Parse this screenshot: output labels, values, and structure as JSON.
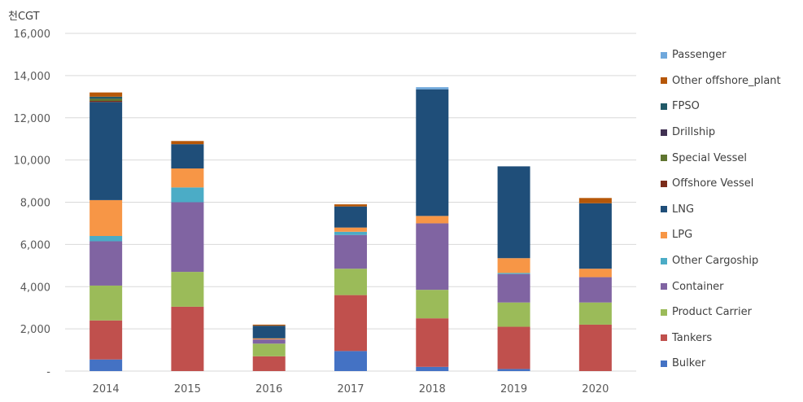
{
  "chart_data": {
    "type": "bar",
    "stacked": true,
    "unit_label": "천CGT",
    "categories": [
      "2014",
      "2015",
      "2016",
      "2017",
      "2018",
      "2019",
      "2020"
    ],
    "ylim": [
      0,
      16000
    ],
    "yticks": [
      0,
      2000,
      4000,
      6000,
      8000,
      10000,
      12000,
      14000,
      16000
    ],
    "ytick_labels": [
      "-",
      "2,000",
      "4,000",
      "6,000",
      "8,000",
      "10,000",
      "12,000",
      "14,000",
      "16,000"
    ],
    "grid": true,
    "legend_position": "right",
    "series": [
      {
        "name": "Bulker",
        "color": "#4472c4",
        "values": [
          550,
          0,
          0,
          950,
          200,
          100,
          0
        ]
      },
      {
        "name": "Tankers",
        "color": "#c0504d",
        "values": [
          1850,
          3050,
          700,
          2650,
          2300,
          2000,
          2200
        ]
      },
      {
        "name": "Product Carrier",
        "color": "#9bbb59",
        "values": [
          1650,
          1650,
          600,
          1250,
          1350,
          1150,
          1050
        ]
      },
      {
        "name": "Container",
        "color": "#8064a2",
        "values": [
          2100,
          3300,
          200,
          1600,
          3150,
          1350,
          1200
        ]
      },
      {
        "name": "Other Cargoship",
        "color": "#4bacc6",
        "values": [
          250,
          700,
          0,
          150,
          0,
          50,
          0
        ]
      },
      {
        "name": "LPG",
        "color": "#f79646",
        "values": [
          1700,
          900,
          50,
          200,
          350,
          700,
          400
        ]
      },
      {
        "name": "LNG",
        "color": "#1f4e79",
        "values": [
          4650,
          1150,
          600,
          1000,
          6000,
          4350,
          3100
        ]
      },
      {
        "name": "Offshore Vessel",
        "color": "#7b2c1a",
        "values": [
          50,
          0,
          0,
          0,
          0,
          0,
          0
        ]
      },
      {
        "name": "Special Vessel",
        "color": "#5f7530",
        "values": [
          100,
          0,
          0,
          0,
          0,
          0,
          0
        ]
      },
      {
        "name": "Drillship",
        "color": "#403152",
        "values": [
          0,
          0,
          0,
          0,
          0,
          0,
          0
        ]
      },
      {
        "name": "FPSO",
        "color": "#215967",
        "values": [
          100,
          0,
          0,
          0,
          0,
          0,
          0
        ]
      },
      {
        "name": "Other offshore_plant",
        "color": "#b65708",
        "values": [
          200,
          150,
          50,
          100,
          0,
          0,
          250
        ]
      },
      {
        "name": "Passenger",
        "color": "#6fa8dc",
        "values": [
          0,
          0,
          0,
          0,
          100,
          0,
          0
        ]
      }
    ]
  }
}
